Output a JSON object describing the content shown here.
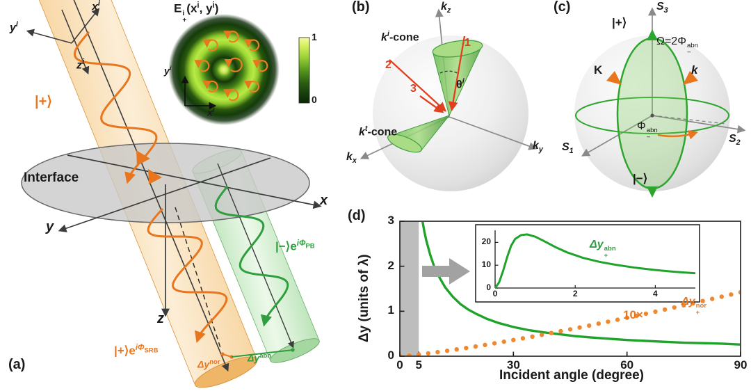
{
  "colors": {
    "orange": "#e8761e",
    "green": "#1fa32a",
    "dark_green": "#2e9e3e",
    "red": "#e0401e",
    "band_gray": "#bdbdbd"
  },
  "panel_a": {
    "label": "(a)",
    "interface": "Interface",
    "ket_plus": "|+⟩",
    "axes_incident": {
      "x": "x",
      "x_sup": "i",
      "y": "y",
      "y_sup": "i",
      "z": "z",
      "z_sup": "i"
    },
    "axes_lab": {
      "x": "x",
      "y": "y",
      "z": "z"
    },
    "ket_minus_pb": {
      "pre": "|−⟩e",
      "sup": "iΦ",
      "sup_sub": "PB"
    },
    "ket_plus_srb": {
      "pre": "|+⟩e",
      "sup": "iΦ",
      "sup_sub": "SRB"
    },
    "dy_nor": {
      "base": "Δy",
      "sup": "nor"
    },
    "dy_abn": {
      "base": "Δy",
      "sup": "abn"
    },
    "inset": {
      "title": {
        "e": "E",
        "e_sup": "i",
        "e_sub": "+",
        "p1": "(x",
        "s1": "i",
        "p2": ", y",
        "s2": "i",
        "p3": ")"
      },
      "cbar_max": "1",
      "cbar_min": "0",
      "axis_y": {
        "base": "y",
        "sup": "i"
      },
      "axis_x": {
        "base": "x",
        "sup": "i"
      }
    }
  },
  "panel_b": {
    "label": "(b)",
    "axis_kz": {
      "base": "k",
      "sub": "z"
    },
    "axis_kx": {
      "base": "k",
      "sub": "x"
    },
    "axis_ky": {
      "base": "k",
      "sub": "y"
    },
    "cone_i": {
      "base": "k",
      "sup": "i",
      "rest": "-cone"
    },
    "cone_t": {
      "base": "k",
      "sup": "t",
      "rest": "-cone"
    },
    "arrow_1": "1",
    "arrow_2": "2",
    "arrow_3": "3",
    "theta": {
      "base": "θ",
      "sup": "i"
    }
  },
  "panel_c": {
    "label": "(c)",
    "axis_s3": {
      "base": "S",
      "sub": "3"
    },
    "axis_s1": {
      "base": "S",
      "sub": "1"
    },
    "axis_s2": {
      "base": "S",
      "sub": "2"
    },
    "ket_plus": "|+⟩",
    "ket_minus": "|−⟩",
    "omega": {
      "base": "Ω=2Φ",
      "sup": "abn",
      "sub": "−"
    },
    "K": "K",
    "k": "k",
    "phi": {
      "base": "Φ",
      "sup": "abn",
      "sub": "−"
    }
  },
  "panel_d": {
    "label": "(d)",
    "ten_x": "10×",
    "dy_nor": {
      "base": "Δy",
      "sup": "nor",
      "sub": "+"
    },
    "inset_label": {
      "base": "Δy",
      "sup": "abn",
      "sub": "+"
    }
  },
  "chart_data": {
    "type": "line",
    "title": "",
    "xlabel": "Incident angle (degree)",
    "ylabel": "Δy (units of λ)",
    "xlim": [
      0,
      90
    ],
    "ylim": [
      0,
      3
    ],
    "xticks": [
      0,
      5,
      30,
      60,
      90
    ],
    "yticks": [
      0,
      1,
      2,
      3
    ],
    "shaded_x_region": [
      0,
      5
    ],
    "grid": false,
    "series": [
      {
        "name": "Δy+ abn (anomalous shift)",
        "color": "#1fa32a",
        "style": "solid",
        "x": [
          5.2,
          5.6,
          6,
          6.5,
          7,
          8,
          9,
          10,
          12,
          14,
          16,
          18,
          20,
          23,
          26,
          30,
          34,
          38,
          42,
          46,
          50,
          55,
          60,
          65,
          70,
          75,
          80,
          85,
          90
        ],
        "y": [
          3.44,
          3.2,
          2.99,
          2.76,
          2.57,
          2.26,
          2.01,
          1.82,
          1.53,
          1.32,
          1.16,
          1.04,
          0.95,
          0.83,
          0.74,
          0.65,
          0.58,
          0.53,
          0.49,
          0.45,
          0.42,
          0.39,
          0.36,
          0.34,
          0.32,
          0.3,
          0.29,
          0.28,
          0.26
        ]
      },
      {
        "name": "Δy+ nor ×10 (normal shift, dotted)",
        "color": "#f08830",
        "style": "dotted",
        "x": [
          0,
          2.5,
          5,
          7.5,
          10,
          12.5,
          15,
          17.5,
          20,
          22.5,
          25,
          27.5,
          30,
          32.5,
          35,
          37.5,
          40,
          42.5,
          45,
          47.5,
          50,
          52.5,
          55,
          57.5,
          60,
          62.5,
          65,
          67.5,
          70,
          72.5,
          75,
          77.5,
          80,
          82.5,
          85,
          87.5,
          90
        ],
        "y": [
          0,
          0.016,
          0.038,
          0.064,
          0.091,
          0.12,
          0.151,
          0.183,
          0.217,
          0.251,
          0.286,
          0.323,
          0.36,
          0.397,
          0.436,
          0.475,
          0.515,
          0.556,
          0.597,
          0.639,
          0.681,
          0.724,
          0.767,
          0.811,
          0.855,
          0.9,
          0.945,
          0.991,
          1.037,
          1.084,
          1.131,
          1.178,
          1.226,
          1.274,
          1.322,
          1.371,
          1.42
        ]
      }
    ],
    "inset": {
      "xlim": [
        0,
        5
      ],
      "ylim": [
        0,
        25
      ],
      "xticks": [
        0,
        2,
        4
      ],
      "yticks": [
        0,
        10,
        20
      ],
      "series": {
        "name": "Δy+ abn (zoom 0–5°)",
        "color": "#1fa32a",
        "x": [
          0,
          0.1,
          0.2,
          0.3,
          0.4,
          0.5,
          0.65,
          0.8,
          1.0,
          1.2,
          1.5,
          1.8,
          2.2,
          2.6,
          3.0,
          3.5,
          4.0,
          4.5,
          5.0
        ],
        "y": [
          0,
          2.5,
          7.5,
          13.5,
          18.5,
          21.5,
          23.2,
          23.5,
          22.5,
          20.8,
          18.0,
          15.6,
          13.2,
          11.5,
          10.2,
          8.9,
          7.9,
          7.1,
          6.5
        ]
      }
    }
  }
}
